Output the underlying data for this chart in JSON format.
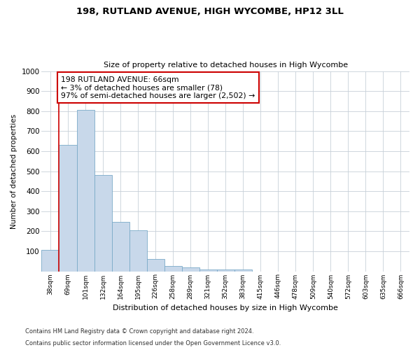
{
  "title": "198, RUTLAND AVENUE, HIGH WYCOMBE, HP12 3LL",
  "subtitle": "Size of property relative to detached houses in High Wycombe",
  "xlabel": "Distribution of detached houses by size in High Wycombe",
  "ylabel": "Number of detached properties",
  "footer1": "Contains HM Land Registry data © Crown copyright and database right 2024.",
  "footer2": "Contains public sector information licensed under the Open Government Licence v3.0.",
  "annotation_line1": "198 RUTLAND AVENUE: 66sqm",
  "annotation_line2": "← 3% of detached houses are smaller (78)",
  "annotation_line3": "97% of semi-detached houses are larger (2,502) →",
  "bar_color": "#c8d8ea",
  "bar_edge_color": "#7aaac8",
  "highlight_line_color": "#cc0000",
  "annotation_box_edge": "#cc0000",
  "categories": [
    "38sqm",
    "69sqm",
    "101sqm",
    "132sqm",
    "164sqm",
    "195sqm",
    "226sqm",
    "258sqm",
    "289sqm",
    "321sqm",
    "352sqm",
    "383sqm",
    "415sqm",
    "446sqm",
    "478sqm",
    "509sqm",
    "540sqm",
    "572sqm",
    "603sqm",
    "635sqm",
    "666sqm"
  ],
  "values": [
    108,
    630,
    805,
    480,
    248,
    205,
    60,
    25,
    18,
    10,
    10,
    10,
    0,
    0,
    0,
    0,
    0,
    0,
    0,
    0,
    0
  ],
  "ylim": [
    0,
    1000
  ],
  "yticks": [
    0,
    100,
    200,
    300,
    400,
    500,
    600,
    700,
    800,
    900,
    1000
  ],
  "figsize": [
    6.0,
    5.0
  ],
  "dpi": 100,
  "bg_color": "#ffffff",
  "grid_color": "#c8d0d8"
}
